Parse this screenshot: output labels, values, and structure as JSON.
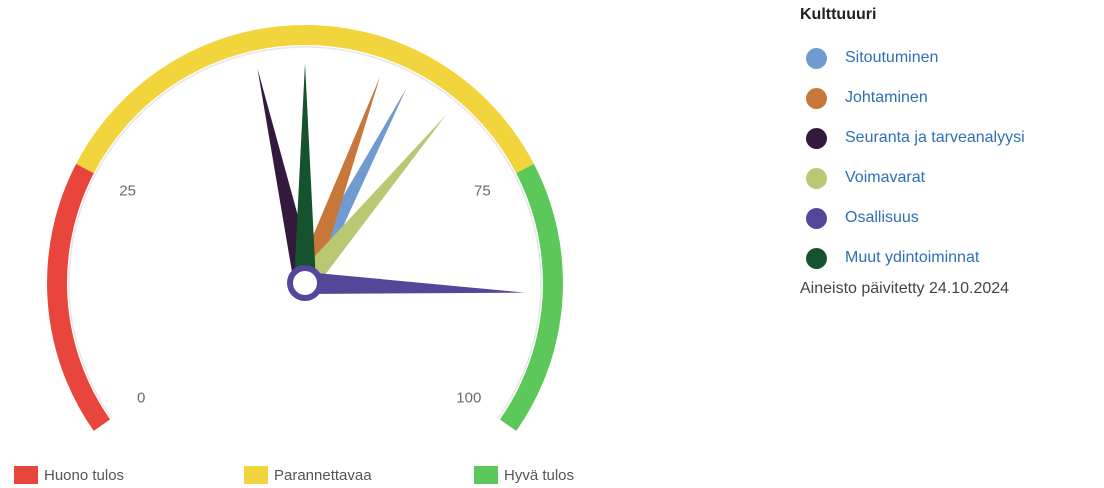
{
  "chart_data": {
    "type": "gauge",
    "title": "",
    "scale": {
      "min": 0,
      "max": 100,
      "ticks": [
        0,
        25,
        75,
        100
      ]
    },
    "bands": [
      {
        "name": "Huono tulos",
        "from": 0,
        "to": 25,
        "color": "#e8453c"
      },
      {
        "name": "Parannettavaa",
        "from": 25,
        "to": 75,
        "color": "#f2d43d"
      },
      {
        "name": "Hyvä tulos",
        "from": 75,
        "to": 100,
        "color": "#5cc85a"
      }
    ],
    "series": [
      {
        "name": "Sitoutuminen",
        "value": 61,
        "color": "#6f9bd0"
      },
      {
        "name": "Johtaminen",
        "value": 58,
        "color": "#c8773a"
      },
      {
        "name": "Seuranta ja tarveanalyysi",
        "value": 45,
        "color": "#33193d"
      },
      {
        "name": "Voimavarat",
        "value": 66,
        "color": "#b9c873"
      },
      {
        "name": "Osallisuus",
        "value": 87,
        "color": "#54479a"
      },
      {
        "name": "Muut ydintoiminnat",
        "value": 50,
        "color": "#14532d"
      }
    ]
  },
  "legend": {
    "title": "Kulttuuuri",
    "updated": "Aineisto päivitetty 24.10.2024"
  }
}
